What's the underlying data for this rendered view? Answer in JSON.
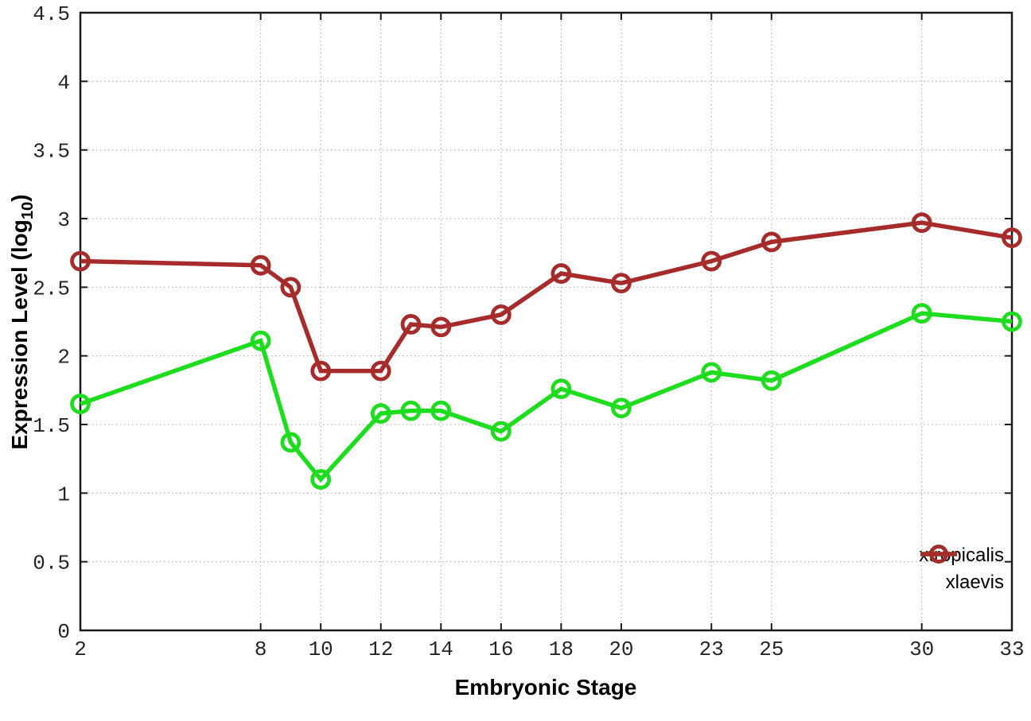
{
  "chart_data": {
    "type": "line",
    "title": "",
    "xlabel": "Embryonic Stage",
    "ylabel": "Expression Level (log10)",
    "ylabel_parts": {
      "prefix": "Expression Level (log",
      "sub": "10",
      "suffix": ")"
    },
    "xlim": [
      2,
      33
    ],
    "ylim": [
      0,
      4.5
    ],
    "xticks": [
      2,
      8,
      10,
      12,
      14,
      16,
      18,
      20,
      23,
      25,
      30,
      33
    ],
    "xtick_labels": [
      "2",
      "8",
      "10",
      "12",
      "14",
      "16",
      "18",
      "20",
      "23",
      "25",
      "30",
      "33"
    ],
    "yticks": [
      0,
      0.5,
      1,
      1.5,
      2,
      2.5,
      3,
      3.5,
      4,
      4.5
    ],
    "ytick_labels": [
      "0",
      "0.5",
      "1",
      "1.5",
      "2",
      "2.5",
      "3",
      "3.5",
      "4",
      "4.5"
    ],
    "grid": true,
    "grid_style": "dotted",
    "legend_position": "bottom-right",
    "marker": "open-circle",
    "x": [
      2,
      8,
      9,
      10,
      12,
      13,
      14,
      16,
      18,
      20,
      23,
      25,
      30,
      33
    ],
    "series": [
      {
        "name": "xtropicalis",
        "color": "#1edc1e",
        "values": [
          1.65,
          2.11,
          1.37,
          1.1,
          1.58,
          1.6,
          1.6,
          1.45,
          1.76,
          1.62,
          1.88,
          1.82,
          2.31,
          2.25
        ]
      },
      {
        "name": "xlaevis",
        "color": "#a62b2b",
        "values": [
          2.69,
          2.66,
          2.5,
          1.89,
          1.89,
          2.23,
          2.21,
          2.3,
          2.6,
          2.53,
          2.69,
          2.83,
          2.97,
          2.86
        ]
      }
    ],
    "axis_color": "#1a1a1a",
    "grid_color": "#b9b9b9",
    "tick_label_color": "#262626"
  }
}
